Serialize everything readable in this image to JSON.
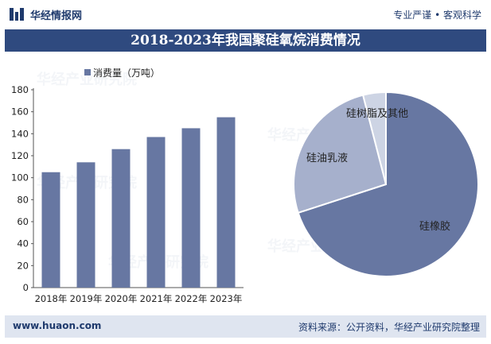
{
  "header": {
    "brand": "华经情报网",
    "slogan": "专业严谨 • 客观科学",
    "title": "2018-2023年我国聚硅氧烷消费情况"
  },
  "footer": {
    "site": "www.huaon.com",
    "source": "资料来源：公开资料，华经产业研究院整理"
  },
  "watermark": "华经产业研究院",
  "colors": {
    "bar": "#6777a2",
    "title_band": "#2f4a7f",
    "pie_main": "#6777a2",
    "pie_mid": "#a6b0cc",
    "pie_small": "#cdd4e4"
  },
  "chart_data": [
    {
      "type": "bar",
      "legend": "消费量（万吨）",
      "legend_position": "top-left",
      "categories": [
        "2018年",
        "2019年",
        "2020年",
        "2021年",
        "2022年",
        "2023年"
      ],
      "values": [
        105,
        114,
        126,
        137,
        145,
        155
      ],
      "ylim": [
        0,
        180
      ],
      "yticks": [
        0,
        20,
        40,
        60,
        80,
        100,
        120,
        140,
        160,
        180
      ],
      "grid": false
    },
    {
      "type": "pie",
      "labels": [
        "硅橡胶",
        "硅油乳液",
        "硅树脂及其他"
      ],
      "values": [
        70,
        26,
        4
      ]
    }
  ]
}
